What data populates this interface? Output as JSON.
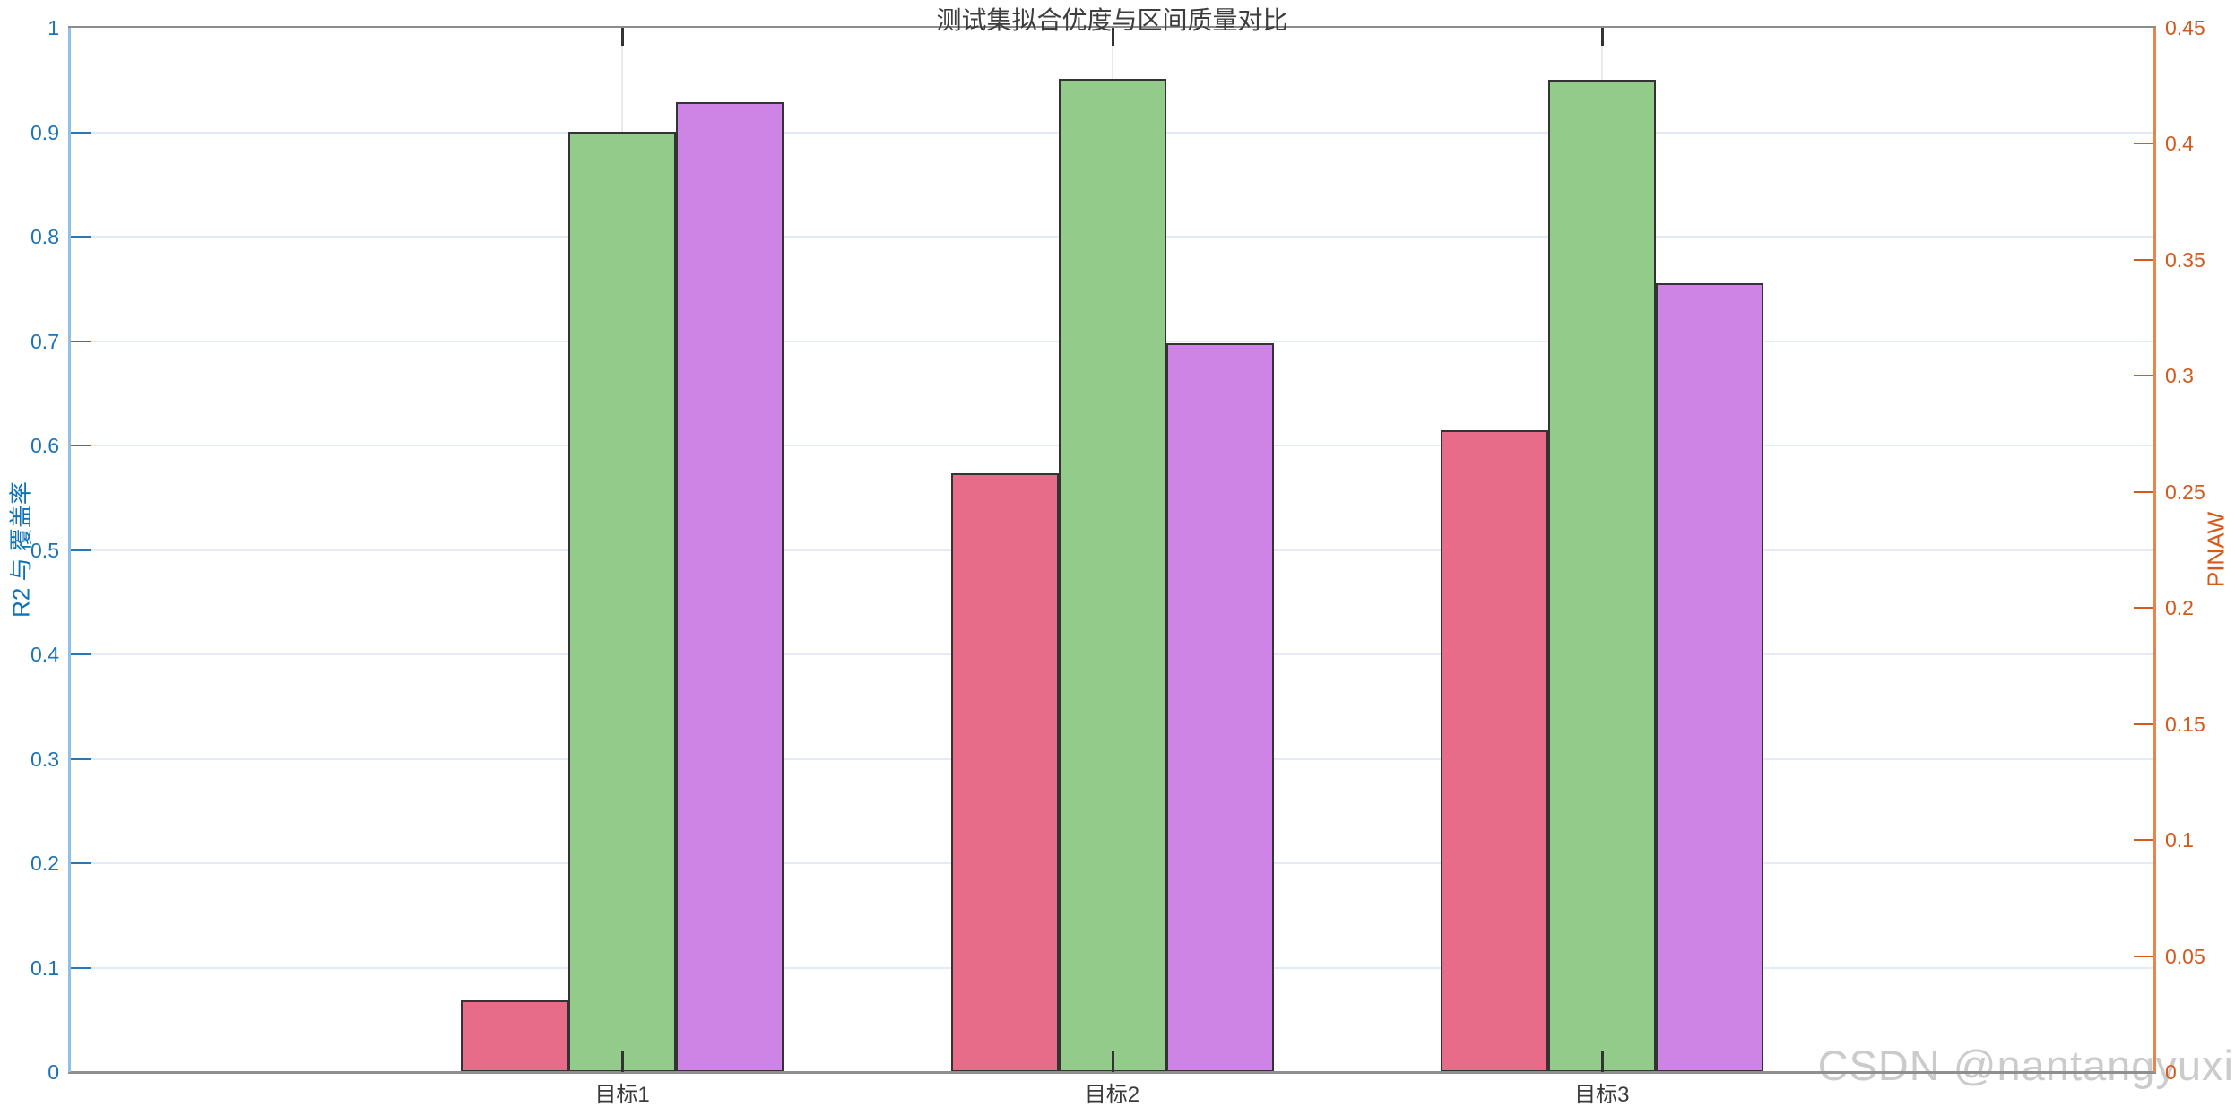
{
  "figure": {
    "watermark": "CSDN @nantangyuxi"
  },
  "chart_data": {
    "type": "bar",
    "title": "测试集拟合优度与区间质量对比",
    "categories": [
      "目标1",
      "目标2",
      "目标3"
    ],
    "series": [
      {
        "name": "R2",
        "axis": "left",
        "color": "#e66c8a",
        "values": [
          0.069,
          0.573,
          0.615
        ]
      },
      {
        "name": "覆盖率",
        "axis": "left",
        "color": "#93cc8a",
        "values": [
          0.9,
          0.951,
          0.95
        ]
      },
      {
        "name": "PINAW",
        "axis": "right",
        "color": "#ce84e4",
        "values": [
          0.418,
          0.314,
          0.34
        ]
      }
    ],
    "left_axis": {
      "label": "R2 与 覆盖率",
      "min": 0,
      "max": 1,
      "tick_labels": [
        "0",
        "0.1",
        "0.2",
        "0.3",
        "0.4",
        "0.5",
        "0.6",
        "0.7",
        "0.8",
        "0.9",
        "1"
      ],
      "color": "#0d72b9"
    },
    "right_axis": {
      "label": "PINAW",
      "min": 0,
      "max": 0.45,
      "tick_labels": [
        "0",
        "0.05",
        "0.1",
        "0.15",
        "0.2",
        "0.25",
        "0.3",
        "0.35",
        "0.4",
        "0.45"
      ],
      "color": "#d4591c"
    },
    "grid": true,
    "legend_position": "none",
    "layout": {
      "group_center_fractions": [
        0.265,
        0.5,
        0.735
      ]
    }
  }
}
